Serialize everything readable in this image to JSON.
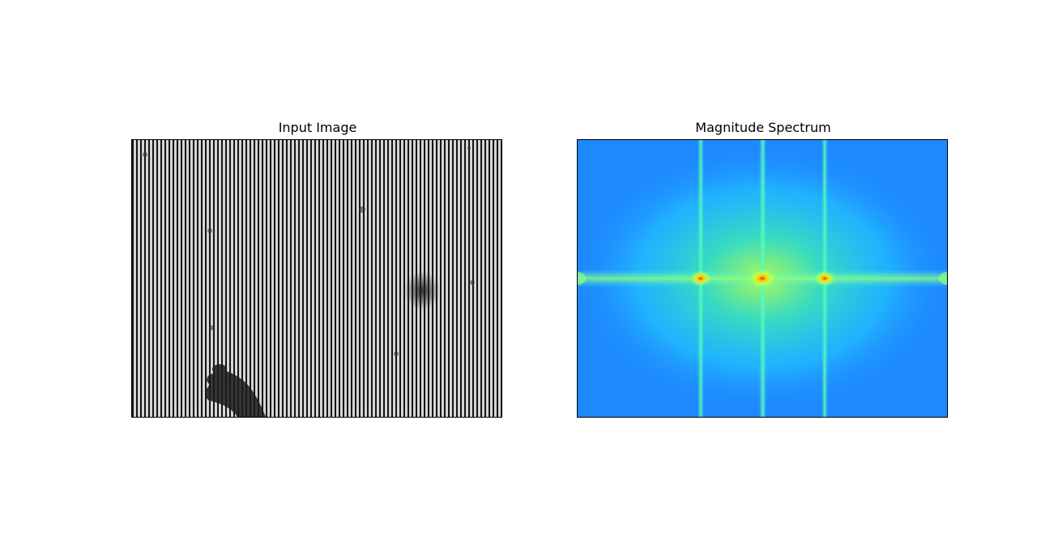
{
  "panels": {
    "left": {
      "title": "Input Image"
    },
    "right": {
      "title": "Magnitude Spectrum"
    }
  },
  "colors": {
    "stripe_dark": "#111111",
    "stripe_light": "#d6d6d6",
    "spectrum_background": "#1e88ff",
    "spectrum_mid": "#22d3ff",
    "spectrum_high": "#7dff7a",
    "spectrum_peak": "#ff1a1a"
  }
}
